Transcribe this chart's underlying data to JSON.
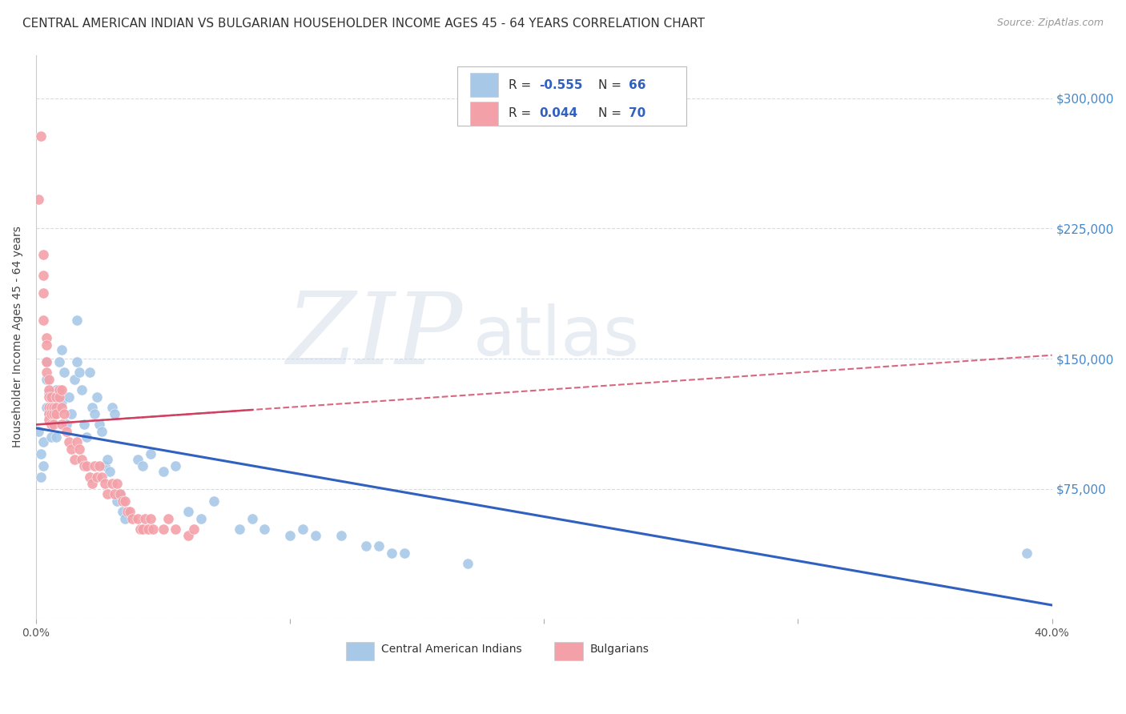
{
  "title": "CENTRAL AMERICAN INDIAN VS BULGARIAN HOUSEHOLDER INCOME AGES 45 - 64 YEARS CORRELATION CHART",
  "source": "Source: ZipAtlas.com",
  "ylabel": "Householder Income Ages 45 - 64 years",
  "yticks": [
    0,
    75000,
    150000,
    225000,
    300000
  ],
  "ytick_labels": [
    "",
    "$75,000",
    "$150,000",
    "$225,000",
    "$300,000"
  ],
  "watermark_zip": "ZIP",
  "watermark_atlas": "atlas",
  "legend_R_blue": "-0.555",
  "legend_N_blue": "66",
  "legend_R_pink": "0.044",
  "legend_N_pink": "70",
  "blue_color": "#a8c8e8",
  "pink_color": "#f4a0a8",
  "blue_line_color": "#3060c0",
  "pink_line_color": "#d04060",
  "blue_scatter": [
    [
      0.001,
      108000
    ],
    [
      0.002,
      95000
    ],
    [
      0.002,
      82000
    ],
    [
      0.003,
      102000
    ],
    [
      0.003,
      88000
    ],
    [
      0.004,
      138000
    ],
    [
      0.004,
      148000
    ],
    [
      0.004,
      122000
    ],
    [
      0.005,
      130000
    ],
    [
      0.005,
      118000
    ],
    [
      0.006,
      128000
    ],
    [
      0.006,
      105000
    ],
    [
      0.007,
      128000
    ],
    [
      0.007,
      118000
    ],
    [
      0.008,
      105000
    ],
    [
      0.008,
      132000
    ],
    [
      0.009,
      148000
    ],
    [
      0.01,
      155000
    ],
    [
      0.01,
      125000
    ],
    [
      0.011,
      142000
    ],
    [
      0.012,
      112000
    ],
    [
      0.013,
      128000
    ],
    [
      0.014,
      118000
    ],
    [
      0.015,
      138000
    ],
    [
      0.016,
      172000
    ],
    [
      0.016,
      148000
    ],
    [
      0.017,
      142000
    ],
    [
      0.018,
      132000
    ],
    [
      0.019,
      112000
    ],
    [
      0.02,
      105000
    ],
    [
      0.021,
      142000
    ],
    [
      0.022,
      122000
    ],
    [
      0.023,
      118000
    ],
    [
      0.024,
      128000
    ],
    [
      0.025,
      112000
    ],
    [
      0.026,
      108000
    ],
    [
      0.027,
      88000
    ],
    [
      0.028,
      92000
    ],
    [
      0.029,
      85000
    ],
    [
      0.03,
      122000
    ],
    [
      0.031,
      118000
    ],
    [
      0.032,
      68000
    ],
    [
      0.033,
      72000
    ],
    [
      0.034,
      62000
    ],
    [
      0.035,
      58000
    ],
    [
      0.04,
      92000
    ],
    [
      0.042,
      88000
    ],
    [
      0.045,
      95000
    ],
    [
      0.05,
      85000
    ],
    [
      0.055,
      88000
    ],
    [
      0.06,
      62000
    ],
    [
      0.065,
      58000
    ],
    [
      0.07,
      68000
    ],
    [
      0.08,
      52000
    ],
    [
      0.085,
      58000
    ],
    [
      0.09,
      52000
    ],
    [
      0.1,
      48000
    ],
    [
      0.105,
      52000
    ],
    [
      0.11,
      48000
    ],
    [
      0.12,
      48000
    ],
    [
      0.13,
      42000
    ],
    [
      0.135,
      42000
    ],
    [
      0.14,
      38000
    ],
    [
      0.145,
      38000
    ],
    [
      0.17,
      32000
    ],
    [
      0.39,
      38000
    ]
  ],
  "pink_scatter": [
    [
      0.001,
      242000
    ],
    [
      0.002,
      278000
    ],
    [
      0.003,
      210000
    ],
    [
      0.003,
      198000
    ],
    [
      0.003,
      188000
    ],
    [
      0.003,
      172000
    ],
    [
      0.004,
      162000
    ],
    [
      0.004,
      158000
    ],
    [
      0.004,
      148000
    ],
    [
      0.004,
      142000
    ],
    [
      0.005,
      138000
    ],
    [
      0.005,
      132000
    ],
    [
      0.005,
      128000
    ],
    [
      0.005,
      122000
    ],
    [
      0.005,
      118000
    ],
    [
      0.005,
      115000
    ],
    [
      0.006,
      128000
    ],
    [
      0.006,
      122000
    ],
    [
      0.006,
      118000
    ],
    [
      0.006,
      112000
    ],
    [
      0.007,
      122000
    ],
    [
      0.007,
      118000
    ],
    [
      0.007,
      112000
    ],
    [
      0.008,
      128000
    ],
    [
      0.008,
      122000
    ],
    [
      0.008,
      118000
    ],
    [
      0.009,
      132000
    ],
    [
      0.009,
      128000
    ],
    [
      0.01,
      132000
    ],
    [
      0.01,
      122000
    ],
    [
      0.01,
      112000
    ],
    [
      0.011,
      118000
    ],
    [
      0.012,
      108000
    ],
    [
      0.013,
      102000
    ],
    [
      0.014,
      98000
    ],
    [
      0.015,
      92000
    ],
    [
      0.016,
      102000
    ],
    [
      0.017,
      98000
    ],
    [
      0.018,
      92000
    ],
    [
      0.019,
      88000
    ],
    [
      0.02,
      88000
    ],
    [
      0.021,
      82000
    ],
    [
      0.022,
      78000
    ],
    [
      0.023,
      88000
    ],
    [
      0.024,
      82000
    ],
    [
      0.025,
      88000
    ],
    [
      0.026,
      82000
    ],
    [
      0.027,
      78000
    ],
    [
      0.028,
      72000
    ],
    [
      0.03,
      78000
    ],
    [
      0.031,
      72000
    ],
    [
      0.032,
      78000
    ],
    [
      0.033,
      72000
    ],
    [
      0.034,
      68000
    ],
    [
      0.035,
      68000
    ],
    [
      0.036,
      62000
    ],
    [
      0.037,
      62000
    ],
    [
      0.038,
      58000
    ],
    [
      0.04,
      58000
    ],
    [
      0.041,
      52000
    ],
    [
      0.042,
      52000
    ],
    [
      0.043,
      58000
    ],
    [
      0.044,
      52000
    ],
    [
      0.045,
      58000
    ],
    [
      0.046,
      52000
    ],
    [
      0.05,
      52000
    ],
    [
      0.052,
      58000
    ],
    [
      0.055,
      52000
    ],
    [
      0.06,
      48000
    ],
    [
      0.062,
      52000
    ]
  ],
  "xlim": [
    0.0,
    0.4
  ],
  "ylim": [
    0,
    325000
  ],
  "blue_trend": [
    0.0,
    110000,
    0.4,
    8000
  ],
  "pink_trend": [
    0.0,
    112000,
    0.4,
    152000
  ],
  "background_color": "#ffffff",
  "grid_color": "#d0d8e0",
  "title_fontsize": 11,
  "label_fontsize": 10,
  "tick_fontsize": 10
}
